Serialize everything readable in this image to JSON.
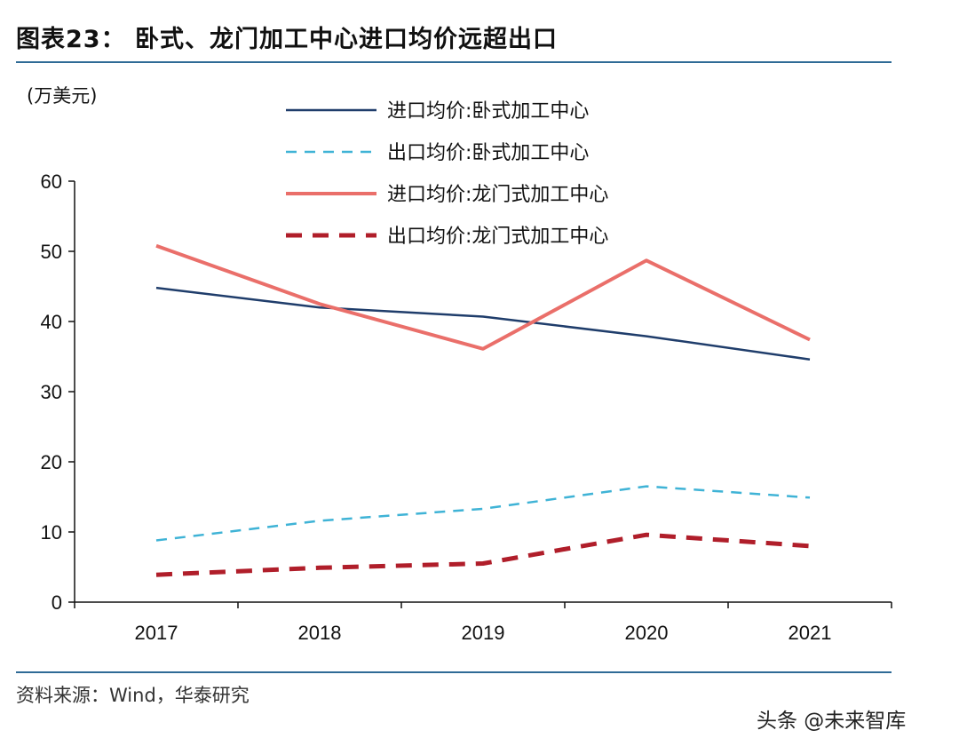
{
  "title": "图表23： 卧式、龙门加工中心进口均价远超出口",
  "unit": "(万美元)",
  "source": "资料来源：Wind，华泰研究",
  "watermark": "头条 @未来智库",
  "colors": {
    "accent_rule": "#2f6b96",
    "series_import_horizontal": "#1f3d6b",
    "series_export_horizontal": "#3fb3d6",
    "series_import_gantry": "#ea6f6a",
    "series_export_gantry": "#b01e2a"
  },
  "chart_data": {
    "type": "line",
    "title": "卧式、龙门加工中心进口均价远超出口",
    "ylabel": "(万美元)",
    "xlabel": "",
    "categories": [
      "2017",
      "2018",
      "2019",
      "2020",
      "2021"
    ],
    "ylim": [
      0,
      60
    ],
    "yticks": [
      0,
      10,
      20,
      30,
      40,
      50,
      60
    ],
    "legend_position": "top-center",
    "series": [
      {
        "name": "进口均价:卧式加工中心",
        "values": [
          44.8,
          42.0,
          40.7,
          37.9,
          34.6
        ],
        "style": "solid",
        "color": "#1f3d6b"
      },
      {
        "name": "出口均价:卧式加工中心",
        "values": [
          8.8,
          11.6,
          13.3,
          16.5,
          14.9
        ],
        "style": "dashed",
        "color": "#3fb3d6"
      },
      {
        "name": "进口均价:龙门式加工中心",
        "values": [
          50.8,
          42.5,
          36.1,
          48.7,
          37.4
        ],
        "style": "solid-thick",
        "color": "#ea6f6a"
      },
      {
        "name": "出口均价:龙门式加工中心",
        "values": [
          3.9,
          4.9,
          5.5,
          9.6,
          8.0
        ],
        "style": "dashed-thick",
        "color": "#b01e2a"
      }
    ]
  }
}
